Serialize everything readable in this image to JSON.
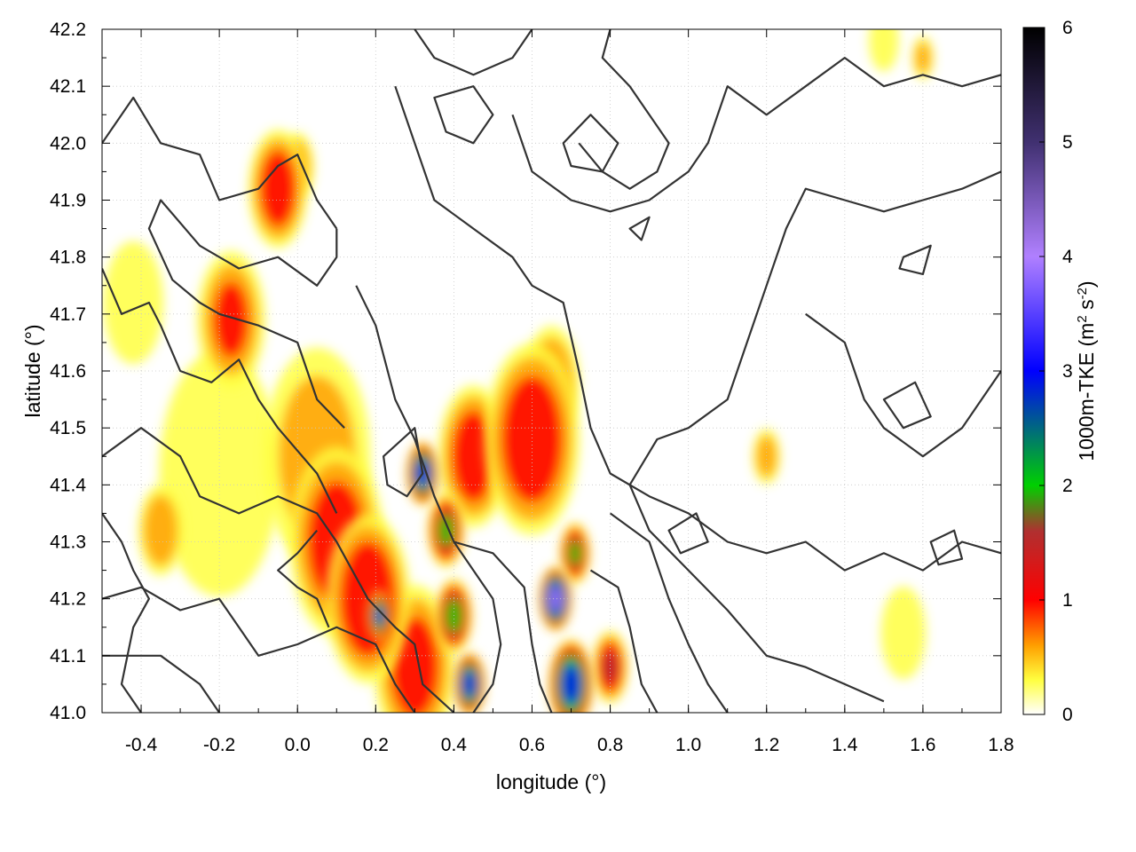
{
  "chart_data": {
    "type": "heatmap",
    "title": "",
    "xlabel": "longitude (°)",
    "ylabel": "latitude (°)",
    "xlim": [
      -0.5,
      1.8
    ],
    "ylim": [
      41.0,
      42.2
    ],
    "xticks": [
      "-0.4",
      "-0.2",
      "0.0",
      "0.2",
      "0.4",
      "0.6",
      "0.8",
      "1.0",
      "1.2",
      "1.4",
      "1.6",
      "1.8"
    ],
    "xtick_values": [
      -0.4,
      -0.2,
      0.0,
      0.2,
      0.4,
      0.6,
      0.8,
      1.0,
      1.2,
      1.4,
      1.6,
      1.8
    ],
    "yticks": [
      "41.0",
      "41.1",
      "41.2",
      "41.3",
      "41.4",
      "41.5",
      "41.6",
      "41.7",
      "41.8",
      "41.9",
      "42.0",
      "42.1",
      "42.2"
    ],
    "ytick_values": [
      41.0,
      41.1,
      41.2,
      41.3,
      41.4,
      41.5,
      41.6,
      41.7,
      41.8,
      41.9,
      42.0,
      42.1,
      42.2
    ],
    "grid": true,
    "colorbar": {
      "label_main": "1000m-TKE (m",
      "label_sup1": "2",
      "label_mid": " s",
      "label_sup2": "-2",
      "label_end": ")",
      "range": [
        0,
        6
      ],
      "ticks": [
        "0",
        "1",
        "2",
        "3",
        "4",
        "5",
        "6"
      ],
      "tick_values": [
        0,
        1,
        2,
        3,
        4,
        5,
        6
      ],
      "stops": [
        {
          "v": 0,
          "color": "#ffffff"
        },
        {
          "v": 0.3,
          "color": "#ffff40"
        },
        {
          "v": 0.6,
          "color": "#ffa000"
        },
        {
          "v": 1.0,
          "color": "#ff0000"
        },
        {
          "v": 1.6,
          "color": "#b03030"
        },
        {
          "v": 2.0,
          "color": "#00d000"
        },
        {
          "v": 3.0,
          "color": "#0000ff"
        },
        {
          "v": 4.0,
          "color": "#b080ff"
        },
        {
          "v": 5.0,
          "color": "#403070"
        },
        {
          "v": 6.0,
          "color": "#000000"
        }
      ]
    },
    "tke_regions": [
      {
        "lon": -0.05,
        "lat": 41.92,
        "value": 1.3,
        "spread": 0.05
      },
      {
        "lon": 0.0,
        "lat": 41.96,
        "value": 0.8,
        "spread": 0.03
      },
      {
        "lon": -0.17,
        "lat": 41.69,
        "value": 1.0,
        "spread": 0.06
      },
      {
        "lon": -0.42,
        "lat": 41.72,
        "value": 0.5,
        "spread": 0.06
      },
      {
        "lon": -0.2,
        "lat": 41.42,
        "value": 0.5,
        "spread": 0.12
      },
      {
        "lon": -0.35,
        "lat": 41.32,
        "value": 0.9,
        "spread": 0.04
      },
      {
        "lon": 0.1,
        "lat": 41.3,
        "value": 1.3,
        "spread": 0.08
      },
      {
        "lon": 0.18,
        "lat": 41.2,
        "value": 1.5,
        "spread": 0.07
      },
      {
        "lon": 0.21,
        "lat": 41.17,
        "value": 3.0,
        "spread": 0.02
      },
      {
        "lon": 0.3,
        "lat": 41.08,
        "value": 1.2,
        "spread": 0.07
      },
      {
        "lon": 0.4,
        "lat": 41.17,
        "value": 2.2,
        "spread": 0.03
      },
      {
        "lon": 0.44,
        "lat": 41.05,
        "value": 3.4,
        "spread": 0.025
      },
      {
        "lon": 0.32,
        "lat": 41.42,
        "value": 3.5,
        "spread": 0.025
      },
      {
        "lon": 0.38,
        "lat": 41.32,
        "value": 2.1,
        "spread": 0.03
      },
      {
        "lon": 0.45,
        "lat": 41.45,
        "value": 1.3,
        "spread": 0.06
      },
      {
        "lon": 0.6,
        "lat": 41.48,
        "value": 1.4,
        "spread": 0.08
      },
      {
        "lon": 0.65,
        "lat": 41.58,
        "value": 0.9,
        "spread": 0.05
      },
      {
        "lon": 0.66,
        "lat": 41.2,
        "value": 4.3,
        "spread": 0.025
      },
      {
        "lon": 0.71,
        "lat": 41.28,
        "value": 2.0,
        "spread": 0.025
      },
      {
        "lon": 0.7,
        "lat": 41.05,
        "value": 3.5,
        "spread": 0.035
      },
      {
        "lon": 0.8,
        "lat": 41.08,
        "value": 1.6,
        "spread": 0.03
      },
      {
        "lon": 0.05,
        "lat": 41.45,
        "value": 0.7,
        "spread": 0.1
      },
      {
        "lon": 1.2,
        "lat": 41.45,
        "value": 0.8,
        "spread": 0.025
      },
      {
        "lon": 1.6,
        "lat": 42.15,
        "value": 0.7,
        "spread": 0.02
      },
      {
        "lon": 1.5,
        "lat": 42.18,
        "value": 0.5,
        "spread": 0.03
      },
      {
        "lon": 1.55,
        "lat": 41.14,
        "value": 0.3,
        "spread": 0.05
      }
    ],
    "contours": [
      [
        [
          -0.5,
          42.0
        ],
        [
          -0.42,
          42.08
        ],
        [
          -0.35,
          42.0
        ],
        [
          -0.25,
          41.98
        ],
        [
          -0.2,
          41.9
        ],
        [
          -0.1,
          41.92
        ],
        [
          -0.05,
          41.96
        ],
        [
          0.0,
          41.98
        ],
        [
          0.05,
          41.9
        ],
        [
          0.1,
          41.85
        ]
      ],
      [
        [
          0.1,
          41.85
        ],
        [
          0.1,
          41.8
        ],
        [
          0.05,
          41.75
        ],
        [
          -0.05,
          41.8
        ],
        [
          -0.15,
          41.78
        ],
        [
          -0.25,
          41.82
        ],
        [
          -0.35,
          41.9
        ],
        [
          -0.38,
          41.85
        ],
        [
          -0.32,
          41.76
        ],
        [
          -0.25,
          41.72
        ],
        [
          -0.2,
          41.7
        ],
        [
          -0.1,
          41.68
        ],
        [
          0.0,
          41.65
        ],
        [
          0.05,
          41.55
        ],
        [
          0.12,
          41.5
        ]
      ],
      [
        [
          -0.5,
          41.78
        ],
        [
          -0.45,
          41.7
        ],
        [
          -0.38,
          41.72
        ],
        [
          -0.35,
          41.68
        ],
        [
          -0.3,
          41.6
        ],
        [
          -0.22,
          41.58
        ],
        [
          -0.15,
          41.62
        ],
        [
          -0.1,
          41.55
        ],
        [
          -0.05,
          41.5
        ],
        [
          0.05,
          41.42
        ],
        [
          0.1,
          41.35
        ]
      ],
      [
        [
          -0.5,
          41.45
        ],
        [
          -0.4,
          41.5
        ],
        [
          -0.3,
          41.45
        ],
        [
          -0.25,
          41.38
        ],
        [
          -0.15,
          41.35
        ],
        [
          -0.05,
          41.38
        ],
        [
          0.05,
          41.35
        ],
        [
          0.1,
          41.3
        ],
        [
          0.18,
          41.2
        ],
        [
          0.25,
          41.15
        ],
        [
          0.3,
          41.12
        ],
        [
          0.32,
          41.05
        ],
        [
          0.4,
          41.0
        ]
      ],
      [
        [
          -0.5,
          41.2
        ],
        [
          -0.4,
          41.22
        ],
        [
          -0.3,
          41.18
        ],
        [
          -0.2,
          41.2
        ],
        [
          -0.15,
          41.15
        ],
        [
          -0.1,
          41.1
        ],
        [
          0.0,
          41.12
        ],
        [
          0.1,
          41.15
        ],
        [
          0.2,
          41.12
        ],
        [
          0.25,
          41.05
        ],
        [
          0.3,
          41.0
        ]
      ],
      [
        [
          -0.5,
          41.1
        ],
        [
          -0.35,
          41.1
        ],
        [
          -0.25,
          41.05
        ],
        [
          -0.2,
          41.0
        ]
      ],
      [
        [
          0.15,
          41.75
        ],
        [
          0.2,
          41.68
        ],
        [
          0.25,
          41.55
        ],
        [
          0.3,
          41.48
        ],
        [
          0.35,
          41.38
        ],
        [
          0.4,
          41.3
        ],
        [
          0.5,
          41.28
        ],
        [
          0.58,
          41.22
        ],
        [
          0.6,
          41.12
        ],
        [
          0.62,
          41.05
        ],
        [
          0.65,
          41.0
        ]
      ],
      [
        [
          0.25,
          42.1
        ],
        [
          0.3,
          42.0
        ],
        [
          0.35,
          41.9
        ],
        [
          0.45,
          41.85
        ],
        [
          0.55,
          41.8
        ],
        [
          0.6,
          41.75
        ],
        [
          0.68,
          41.72
        ],
        [
          0.72,
          41.6
        ],
        [
          0.75,
          41.5
        ],
        [
          0.8,
          41.42
        ],
        [
          0.9,
          41.38
        ],
        [
          1.0,
          41.35
        ],
        [
          1.1,
          41.3
        ],
        [
          1.2,
          41.28
        ],
        [
          1.3,
          41.3
        ],
        [
          1.4,
          41.25
        ],
        [
          1.5,
          41.28
        ],
        [
          1.6,
          41.25
        ],
        [
          1.7,
          41.3
        ],
        [
          1.8,
          41.28
        ]
      ],
      [
        [
          0.3,
          42.2
        ],
        [
          0.35,
          42.15
        ],
        [
          0.45,
          42.12
        ],
        [
          0.55,
          42.15
        ],
        [
          0.6,
          42.2
        ]
      ],
      [
        [
          0.55,
          42.05
        ],
        [
          0.6,
          41.95
        ],
        [
          0.7,
          41.9
        ],
        [
          0.8,
          41.88
        ],
        [
          0.9,
          41.9
        ],
        [
          1.0,
          41.95
        ],
        [
          1.05,
          42.0
        ],
        [
          1.1,
          42.1
        ],
        [
          1.2,
          42.05
        ],
        [
          1.3,
          42.1
        ],
        [
          1.4,
          42.15
        ],
        [
          1.5,
          42.1
        ],
        [
          1.6,
          42.12
        ],
        [
          1.7,
          42.1
        ],
        [
          1.8,
          42.12
        ]
      ],
      [
        [
          1.8,
          41.95
        ],
        [
          1.7,
          41.92
        ],
        [
          1.6,
          41.9
        ],
        [
          1.5,
          41.88
        ],
        [
          1.4,
          41.9
        ],
        [
          1.3,
          41.92
        ],
        [
          1.25,
          41.85
        ],
        [
          1.2,
          41.75
        ],
        [
          1.15,
          41.65
        ],
        [
          1.1,
          41.55
        ],
        [
          1.0,
          41.5
        ],
        [
          0.92,
          41.48
        ],
        [
          0.85,
          41.4
        ],
        [
          0.9,
          41.32
        ],
        [
          1.0,
          41.25
        ],
        [
          1.1,
          41.18
        ],
        [
          1.2,
          41.1
        ],
        [
          1.3,
          41.08
        ],
        [
          1.4,
          41.05
        ],
        [
          1.5,
          41.02
        ]
      ],
      [
        [
          0.75,
          41.25
        ],
        [
          0.82,
          41.22
        ],
        [
          0.85,
          41.15
        ],
        [
          0.88,
          41.05
        ],
        [
          0.92,
          41.0
        ]
      ],
      [
        [
          0.8,
          41.35
        ],
        [
          0.9,
          41.3
        ],
        [
          0.95,
          41.2
        ],
        [
          1.0,
          41.12
        ],
        [
          1.05,
          41.05
        ],
        [
          1.1,
          41.0
        ]
      ],
      [
        [
          1.3,
          41.7
        ],
        [
          1.4,
          41.65
        ],
        [
          1.45,
          41.55
        ],
        [
          1.5,
          41.5
        ],
        [
          1.6,
          41.45
        ],
        [
          1.7,
          41.5
        ],
        [
          1.75,
          41.55
        ],
        [
          1.8,
          41.6
        ]
      ],
      [
        [
          -0.5,
          41.35
        ],
        [
          -0.45,
          41.3
        ],
        [
          -0.42,
          41.25
        ],
        [
          -0.38,
          41.2
        ],
        [
          -0.42,
          41.15
        ],
        [
          -0.45,
          41.05
        ],
        [
          -0.4,
          41.0
        ]
      ],
      [
        [
          0.05,
          41.32
        ],
        [
          0.0,
          41.28
        ],
        [
          -0.05,
          41.25
        ],
        [
          0.0,
          41.22
        ],
        [
          0.05,
          41.2
        ],
        [
          0.08,
          41.15
        ]
      ],
      [
        [
          0.4,
          41.3
        ],
        [
          0.45,
          41.25
        ],
        [
          0.5,
          41.2
        ],
        [
          0.52,
          41.12
        ],
        [
          0.5,
          41.05
        ],
        [
          0.45,
          41.0
        ]
      ],
      [
        [
          0.8,
          42.2
        ],
        [
          0.78,
          42.15
        ],
        [
          0.85,
          42.1
        ],
        [
          0.9,
          42.05
        ],
        [
          0.95,
          42.0
        ],
        [
          0.92,
          41.95
        ],
        [
          0.85,
          41.92
        ],
        [
          0.78,
          41.95
        ],
        [
          0.72,
          42.0
        ]
      ]
    ],
    "contour_loops": [
      [
        [
          0.35,
          42.08
        ],
        [
          0.45,
          42.1
        ],
        [
          0.5,
          42.05
        ],
        [
          0.45,
          42.0
        ],
        [
          0.38,
          42.02
        ]
      ],
      [
        [
          0.68,
          42.0
        ],
        [
          0.75,
          42.05
        ],
        [
          0.82,
          42.0
        ],
        [
          0.78,
          41.95
        ],
        [
          0.7,
          41.96
        ]
      ],
      [
        [
          1.5,
          41.55
        ],
        [
          1.58,
          41.58
        ],
        [
          1.62,
          41.52
        ],
        [
          1.55,
          41.5
        ]
      ],
      [
        [
          0.95,
          41.32
        ],
        [
          1.02,
          41.35
        ],
        [
          1.05,
          41.3
        ],
        [
          0.98,
          41.28
        ]
      ],
      [
        [
          1.55,
          41.8
        ],
        [
          1.62,
          41.82
        ],
        [
          1.6,
          41.77
        ],
        [
          1.54,
          41.78
        ]
      ],
      [
        [
          0.85,
          41.85
        ],
        [
          0.9,
          41.87
        ],
        [
          0.88,
          41.83
        ]
      ],
      [
        [
          0.22,
          41.45
        ],
        [
          0.3,
          41.5
        ],
        [
          0.32,
          41.42
        ],
        [
          0.28,
          41.38
        ],
        [
          0.23,
          41.4
        ]
      ],
      [
        [
          1.62,
          41.3
        ],
        [
          1.68,
          41.32
        ],
        [
          1.7,
          41.27
        ],
        [
          1.64,
          41.26
        ]
      ]
    ]
  }
}
